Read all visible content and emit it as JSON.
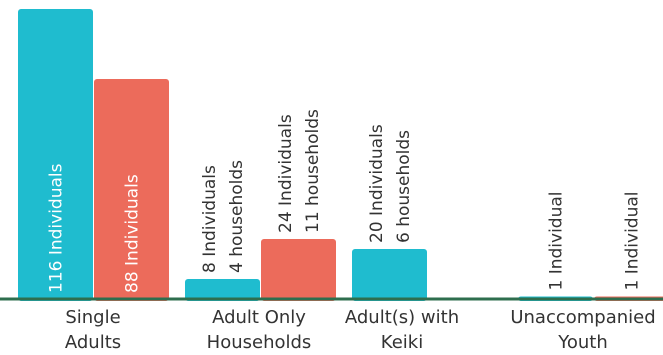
{
  "chart_data": {
    "type": "bar",
    "categories": [
      [
        "Single",
        "Adults"
      ],
      [
        "Adult Only",
        "Households"
      ],
      [
        "Adult(s) with",
        "Keiki"
      ],
      [
        "Unaccompanied",
        "Youth"
      ]
    ],
    "series": [
      {
        "color": "#1fbccf",
        "values": [
          116,
          8,
          20,
          1
        ],
        "labels": [
          [
            "116 Individuals"
          ],
          [
            "8 Individuals",
            "4 households"
          ],
          [
            "20 Individuals",
            "6 households"
          ],
          [
            "1 Individual"
          ]
        ]
      },
      {
        "color": "#ec6b5b",
        "values": [
          88,
          24,
          null,
          1
        ],
        "labels": [
          [
            "88 Individuals"
          ],
          [
            "24 Individuals",
            "11 households"
          ],
          null,
          [
            "1 Individual"
          ]
        ]
      }
    ],
    "ylim": [
      0,
      116
    ],
    "baseline_color": "#2e6e4e",
    "label_text_color_inside": "#ffffff",
    "label_text_color_outside": "#333333",
    "xlabel": "",
    "ylabel": ""
  }
}
